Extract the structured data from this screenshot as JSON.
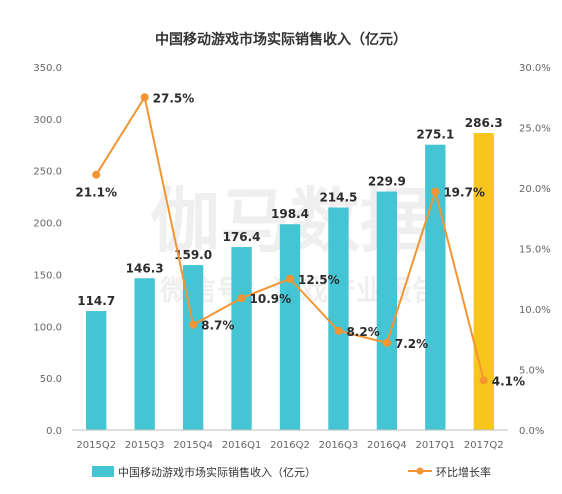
{
  "chart_data": {
    "type": "bar",
    "title": "中国移动游戏市场实际销售收入（亿元）",
    "categories": [
      "2015Q2",
      "2015Q3",
      "2015Q4",
      "2016Q1",
      "2016Q2",
      "2016Q3",
      "2016Q4",
      "2017Q1",
      "2017Q2"
    ],
    "y_left": {
      "range": [
        0,
        350
      ],
      "ticks": [
        "0.0",
        "50.0",
        "100.0",
        "150.0",
        "200.0",
        "250.0",
        "300.0",
        "350.0"
      ]
    },
    "y_right": {
      "range": [
        0,
        30
      ],
      "ticks": [
        "0.0%",
        "5.0%",
        "10.0%",
        "15.0%",
        "20.0%",
        "25.0%",
        "30.0%"
      ]
    },
    "series": [
      {
        "name": "中国移动游戏市场实际销售收入（亿元）",
        "type": "bar",
        "axis": "left",
        "values": [
          114.7,
          146.3,
          159.0,
          176.4,
          198.4,
          214.5,
          229.9,
          275.1,
          286.3
        ],
        "labels": [
          "114.7",
          "146.3",
          "159.0",
          "176.4",
          "198.4",
          "214.5",
          "229.9",
          "275.1",
          "286.3"
        ],
        "color": "#45c4d4",
        "highlight_color": "#f8c51c"
      },
      {
        "name": "环比增长率",
        "type": "line",
        "axis": "right",
        "values": [
          21.1,
          27.5,
          8.7,
          10.9,
          12.5,
          8.2,
          7.2,
          19.7,
          4.1
        ],
        "labels": [
          "21.1%",
          "27.5%",
          "8.7%",
          "10.9%",
          "12.5%",
          "8.2%",
          "7.2%",
          "19.7%",
          "4.1%"
        ],
        "color": "#f39533"
      }
    ],
    "grid": false,
    "legend_position": "bottom"
  },
  "watermark": {
    "line1": "伽马数据",
    "line2": "微信号：游戏产业报告"
  }
}
